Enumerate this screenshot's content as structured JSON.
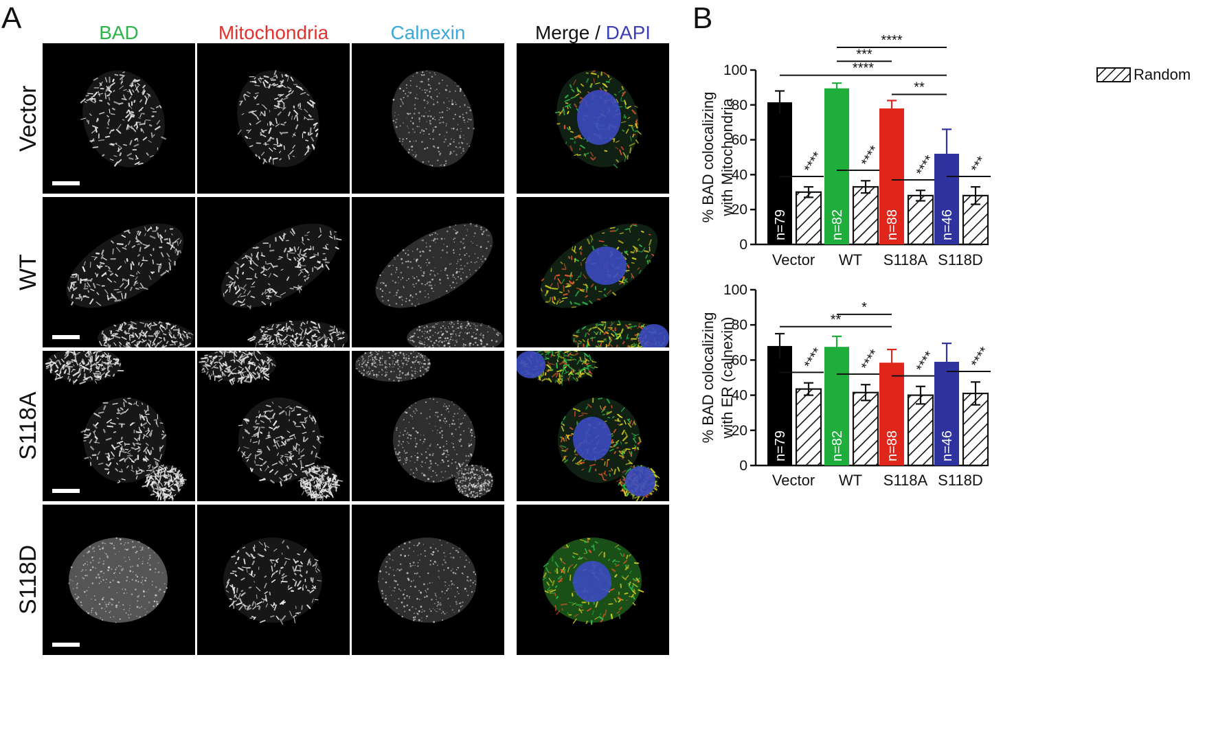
{
  "figure": {
    "panel_a_label": "A",
    "panel_b_label": "B",
    "channels": [
      {
        "label": "BAD",
        "color": "#2db34a"
      },
      {
        "label": "Mitochondria",
        "color": "#e0322e"
      },
      {
        "label": "Calnexin",
        "color": "#3aa8d8"
      }
    ],
    "merge_label": "Merge",
    "merge_sep": " / ",
    "dapi_label": "DAPI",
    "merge_color": "#111111",
    "dapi_color": "#3b3fb3",
    "rows": [
      "Vector",
      "WT",
      "S118A",
      "S118D"
    ],
    "legend_label": "Random"
  },
  "chart_data": [
    {
      "type": "bar",
      "ylabel": [
        "% BAD colocalizing",
        "with Mitochondria"
      ],
      "ylim": [
        0,
        100
      ],
      "yticks": [
        0,
        20,
        40,
        60,
        80,
        100
      ],
      "categories": [
        "Vector",
        "WT",
        "S118A",
        "S118D"
      ],
      "series": [
        {
          "values": [
            81.5,
            89.5,
            78,
            52
          ],
          "errors": [
            6.5,
            3,
            4.5,
            14
          ],
          "colors": [
            "#000000",
            "#1fae3c",
            "#e0251b",
            "#2e33a0"
          ],
          "bar_labels": [
            "n=79",
            "n=82",
            "n=88",
            "n=46"
          ]
        },
        {
          "name": "Random",
          "values": [
            30,
            33,
            28,
            28
          ],
          "errors": [
            3,
            3.5,
            3,
            5
          ],
          "pattern": "hatch"
        }
      ],
      "vs_random_stars": [
        "****",
        "****",
        "****",
        "***"
      ],
      "brackets": [
        {
          "from": 1,
          "to": 3,
          "stars": "****",
          "y": 113
        },
        {
          "from": 1,
          "to": 2,
          "stars": "***",
          "y": 105
        },
        {
          "from": 0,
          "to": 3,
          "stars": "****",
          "y": 97
        },
        {
          "from": 2,
          "to": 3,
          "stars": "**",
          "y": 86
        }
      ]
    },
    {
      "type": "bar",
      "ylabel": [
        "% BAD colocalizing",
        "with ER (calnexin)"
      ],
      "ylim": [
        0,
        100
      ],
      "yticks": [
        0,
        20,
        40,
        60,
        80,
        100
      ],
      "categories": [
        "Vector",
        "WT",
        "S118A",
        "S118D"
      ],
      "series": [
        {
          "values": [
            68,
            67.5,
            58.5,
            59
          ],
          "errors": [
            7,
            6,
            7.5,
            10.5
          ],
          "colors": [
            "#000000",
            "#1fae3c",
            "#e0251b",
            "#2e33a0"
          ],
          "bar_labels": [
            "n=79",
            "n=82",
            "n=88",
            "n=46"
          ]
        },
        {
          "name": "Random",
          "values": [
            43.5,
            41.5,
            40,
            41
          ],
          "errors": [
            3.5,
            4.5,
            5,
            6.5
          ],
          "pattern": "hatch"
        }
      ],
      "vs_random_stars": [
        "****",
        "****",
        "****",
        "****"
      ],
      "brackets": [
        {
          "from": 1,
          "to": 2,
          "stars": "*",
          "y": 86
        },
        {
          "from": 0,
          "to": 2,
          "stars": "**",
          "y": 79
        }
      ]
    }
  ]
}
